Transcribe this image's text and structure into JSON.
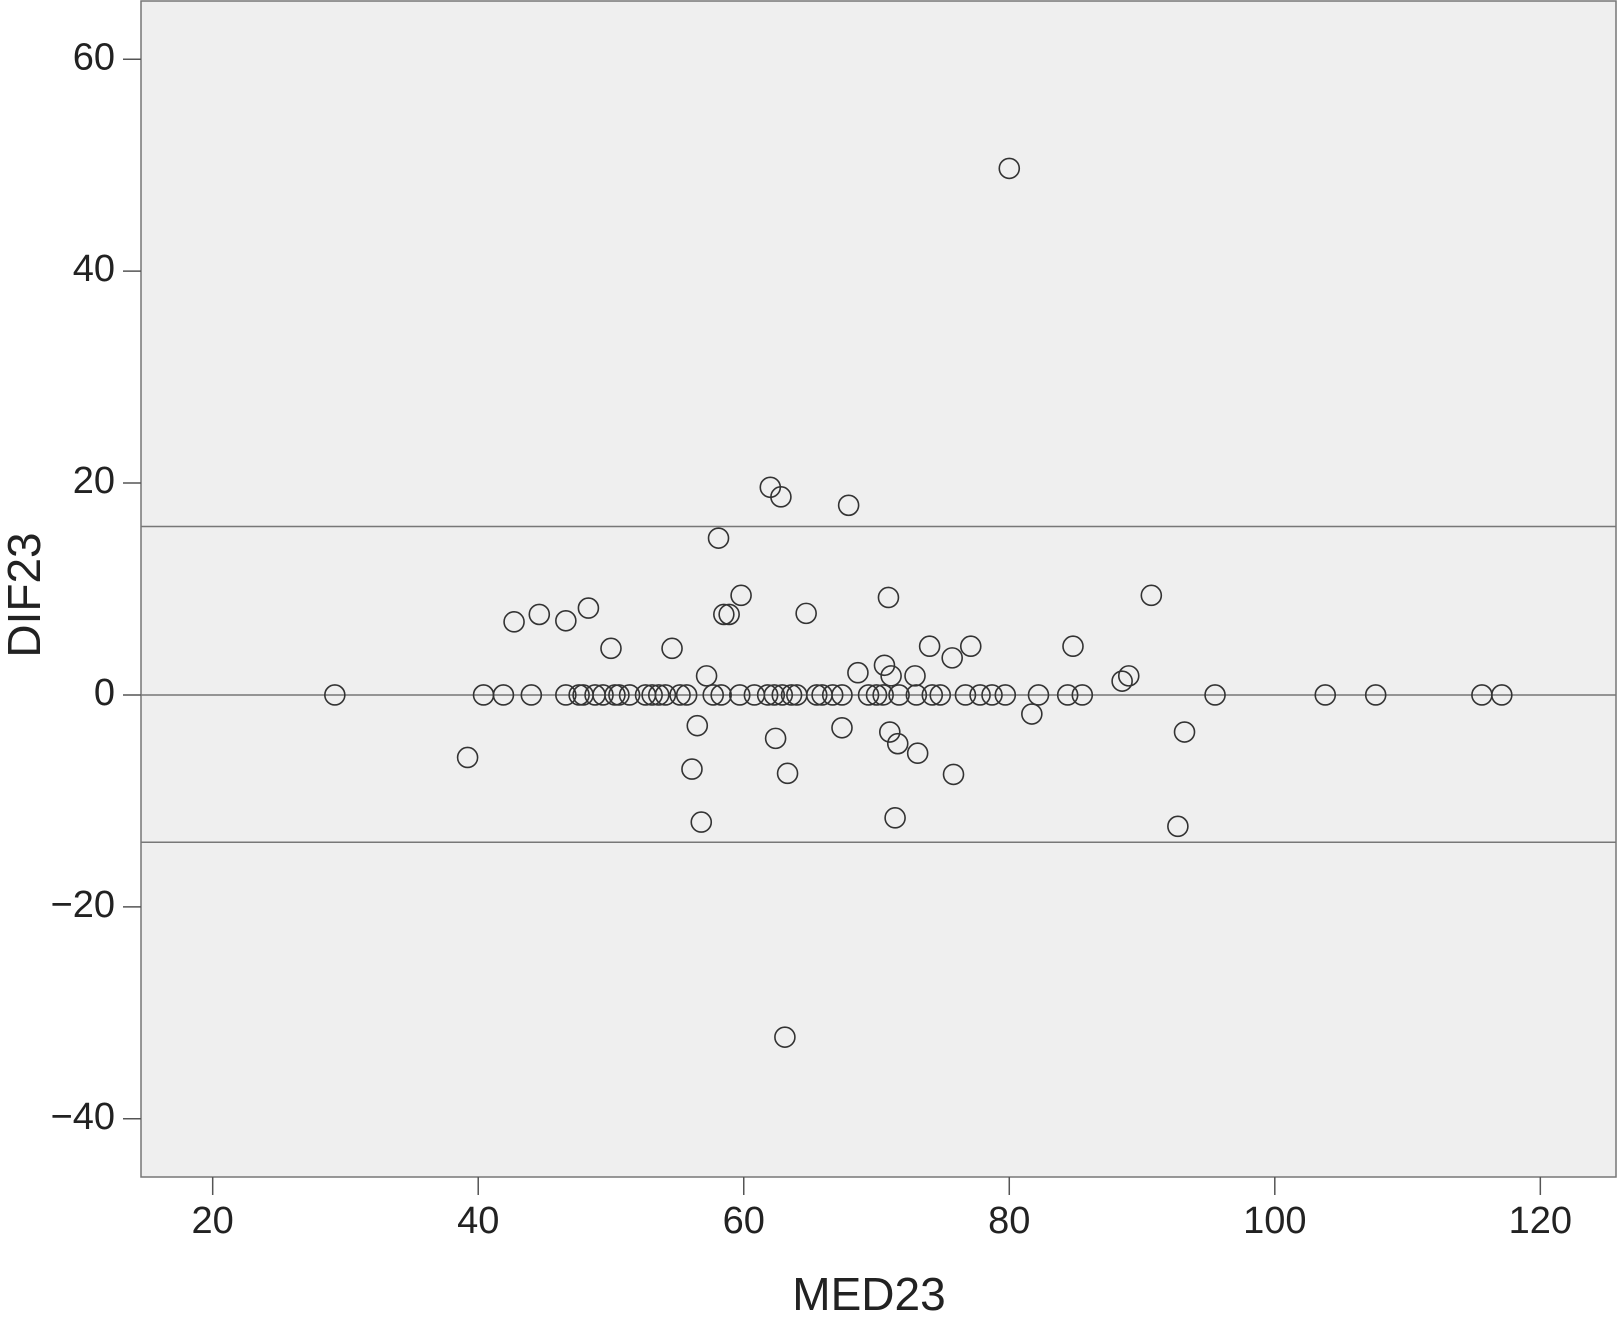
{
  "chart_data": {
    "type": "scatter",
    "x_label": "MED23",
    "y_label": "DIF23",
    "xlim": [
      14.6,
      125.7
    ],
    "ylim": [
      -45.5,
      65.5
    ],
    "xticks": [
      20,
      40,
      60,
      80,
      100,
      120
    ],
    "yticks": [
      {
        "value": -40,
        "label": "−40"
      },
      {
        "value": -20,
        "label": "−20"
      },
      0,
      20,
      40,
      60
    ],
    "reference_lines": [
      15.9,
      0,
      -13.9
    ],
    "background": "#efefef",
    "series": [
      {
        "color": "#333333",
        "x": [
          29.2,
          39.2,
          40.4,
          41.9,
          42.7,
          44.0,
          44.6,
          46.6,
          46.6,
          47.6,
          47.9,
          48.3,
          48.8,
          49.4,
          50.0,
          50.3,
          50.6,
          51.4,
          52.6,
          53.1,
          53.6,
          54.1,
          54.6,
          55.2,
          55.7,
          56.1,
          56.5,
          56.8,
          57.2,
          57.7,
          58.1,
          58.3,
          58.5,
          58.9,
          59.7,
          59.8,
          60.8,
          62.0,
          62.4,
          61.8,
          62.3,
          62.8,
          62.9,
          63.1,
          63.3,
          63.6,
          64.0,
          64.7,
          65.5,
          65.9,
          66.7,
          67.4,
          67.4,
          67.9,
          68.6,
          69.4,
          70.0,
          70.5,
          70.6,
          70.9,
          71.1,
          71.0,
          71.4,
          71.6,
          71.7,
          72.9,
          73.1,
          73.0,
          74.0,
          74.2,
          74.8,
          75.7,
          75.8,
          76.7,
          77.1,
          77.8,
          78.7,
          79.7,
          80.0,
          81.7,
          82.2,
          84.4,
          84.8,
          85.5,
          88.5,
          89.0,
          90.7,
          92.7,
          93.2,
          95.5,
          103.8,
          107.6,
          115.6,
          117.1
        ],
        "values": [
          0,
          -5.9,
          0,
          0,
          6.9,
          0,
          7.6,
          7.0,
          0,
          0,
          0,
          8.2,
          0,
          0,
          4.4,
          0,
          0,
          0,
          0,
          0,
          0,
          0,
          4.4,
          0,
          0,
          -7.0,
          -2.9,
          -12.0,
          1.8,
          0,
          14.8,
          0,
          7.6,
          7.6,
          0,
          9.4,
          0,
          19.6,
          -4.1,
          0,
          0,
          18.7,
          0,
          -32.3,
          -7.4,
          0,
          0,
          7.7,
          0,
          0,
          0,
          0,
          -3.1,
          17.9,
          2.1,
          0,
          0,
          0,
          2.8,
          9.2,
          1.8,
          -3.5,
          -11.6,
          -4.6,
          0,
          1.8,
          -5.5,
          0,
          4.6,
          0,
          0,
          3.5,
          -7.5,
          0,
          4.6,
          0,
          0,
          0,
          49.7,
          -1.8,
          0,
          0,
          4.6,
          0,
          1.3,
          1.8,
          9.4,
          -12.4,
          -3.5,
          0,
          0,
          0,
          0,
          0
        ]
      }
    ]
  }
}
